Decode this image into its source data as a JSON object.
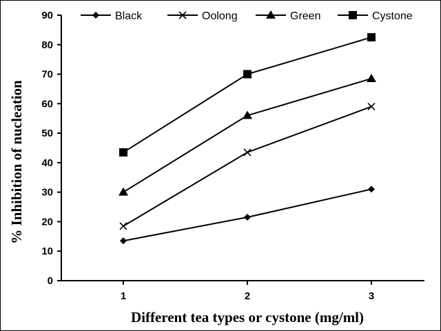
{
  "chart_data": {
    "type": "line",
    "title": "",
    "xlabel": "Different tea types or cystone (mg/ml)",
    "ylabel": "% Inhibition of nucleation",
    "x": [
      1,
      2,
      3
    ],
    "categories": [
      "1",
      "2",
      "3"
    ],
    "ylim": [
      0,
      90
    ],
    "yticks": [
      "0",
      "10",
      "20",
      "30",
      "40",
      "50",
      "60",
      "70",
      "80",
      "90"
    ],
    "grid": false,
    "legend_position": "top",
    "series": [
      {
        "name": "Black",
        "marker": "diamond",
        "values": [
          13.5,
          21.5,
          31
        ]
      },
      {
        "name": "Oolong",
        "marker": "x",
        "values": [
          18.5,
          43.5,
          59
        ]
      },
      {
        "name": "Green",
        "marker": "triangle",
        "values": [
          30,
          56,
          68.5
        ]
      },
      {
        "name": "Cystone",
        "marker": "square",
        "values": [
          43.5,
          70,
          82.5
        ]
      }
    ],
    "colors": {
      "series": "#000000",
      "background": "#ffffff"
    }
  }
}
